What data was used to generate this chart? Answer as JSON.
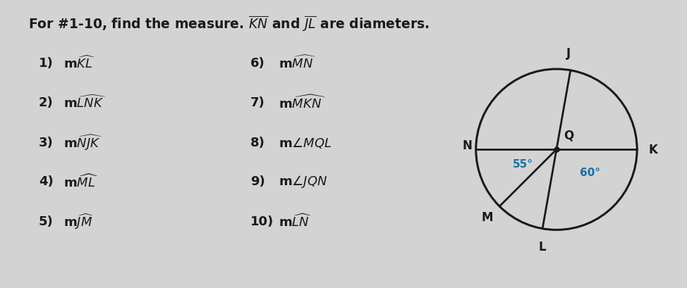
{
  "background_color": "#d3d3d3",
  "text_color": "#1a1a1a",
  "angle_color": "#1a6fa8",
  "line_color": "#1a1a1a",
  "circle_color": "#1a1a1a",
  "font_size_title": 13.5,
  "font_size_items": 13,
  "font_size_labels": 12,
  "font_size_angles": 11,
  "items_left": [
    {
      "num": "1)",
      "text": "m$\\widehat{KL}$"
    },
    {
      "num": "2)",
      "text": "m$\\widehat{LNK}$"
    },
    {
      "num": "3)",
      "text": "m$\\widehat{NJK}$"
    },
    {
      "num": "4)",
      "text": "m$\\widehat{ML}$"
    },
    {
      "num": "5)",
      "text": "m$\\widehat{JM}$"
    }
  ],
  "items_right": [
    {
      "num": "6)",
      "text": "m$\\widehat{MN}$"
    },
    {
      "num": "7)",
      "text": "m$\\widehat{MKN}$"
    },
    {
      "num": "8)",
      "text": "m$\\angle MQL$"
    },
    {
      "num": "9)",
      "text": "m$\\angle JQN$"
    },
    {
      "num": "10)",
      "text": "m$\\widehat{LN}$"
    }
  ],
  "k_ang": 0,
  "j_ang": 80,
  "n_ang": 180,
  "m_ang": 225,
  "l_ang": 260,
  "angle_55_label": "55°",
  "angle_60_label": "60°"
}
